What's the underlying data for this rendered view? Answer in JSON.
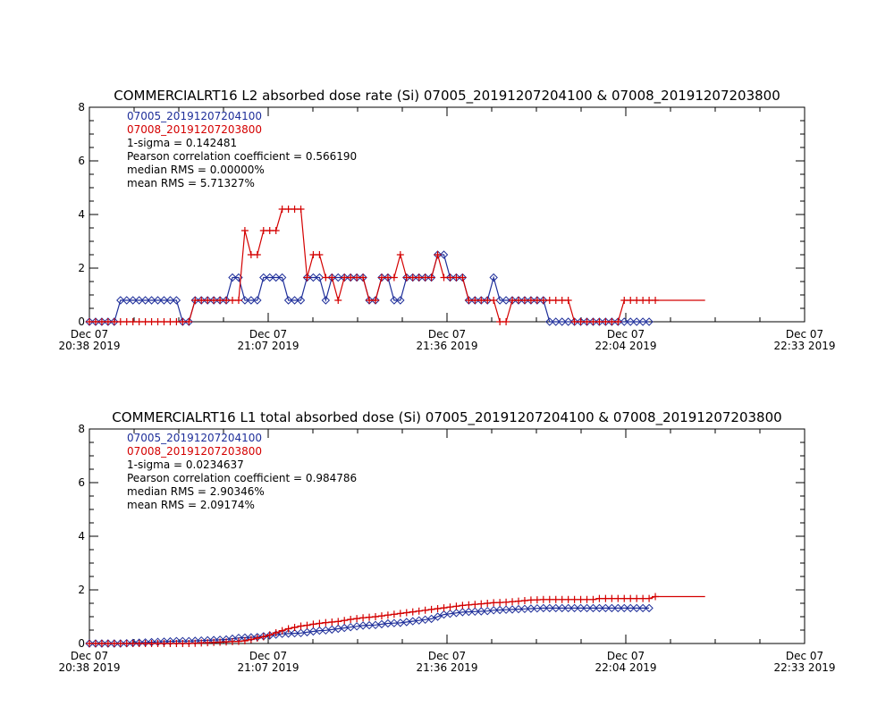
{
  "colors": {
    "blue": "#1f2f9a",
    "red": "#d40000",
    "axis": "#000000"
  },
  "chart_data": [
    {
      "type": "line",
      "title": "COMMERCIALRT16 L2 absorbed dose rate (Si) 07005_20191207204100 & 07008_20191207203800",
      "ylim": [
        0,
        8
      ],
      "yticks": [
        "0",
        "2",
        "4",
        "6",
        "8"
      ],
      "xticks": [
        {
          "day": "Dec 07",
          "time": "20:38 2019"
        },
        {
          "day": "Dec 07",
          "time": "21:07 2019"
        },
        {
          "day": "Dec 07",
          "time": "21:36 2019"
        },
        {
          "day": "Dec 07",
          "time": "22:04 2019"
        },
        {
          "day": "Dec 07",
          "time": "22:33 2019"
        }
      ],
      "xrange_min": [
        0,
        115
      ],
      "legend": [
        {
          "text": "07005_20191207204100",
          "color": "blue"
        },
        {
          "text": "07008_20191207203800",
          "color": "red"
        },
        {
          "text": "1-sigma = 0.142481",
          "color": "black"
        },
        {
          "text": "Pearson correlation coefficient = 0.566190",
          "color": "black"
        },
        {
          "text": "median RMS = 0.00000%",
          "color": "black"
        },
        {
          "text": "mean RMS = 5.71327%",
          "color": "black"
        }
      ],
      "series": [
        {
          "name": "07005_20191207204100",
          "color": "blue",
          "marker": "diamond",
          "x": [
            0,
            1,
            2,
            3,
            4,
            5,
            6,
            7,
            8,
            9,
            10,
            11,
            12,
            13,
            14,
            15,
            16,
            17,
            18,
            19,
            20,
            21,
            22,
            23,
            24,
            25,
            26,
            27,
            28,
            29,
            30,
            31,
            32,
            33,
            34,
            35,
            36,
            37,
            38,
            39,
            40,
            41,
            42,
            43,
            44,
            45,
            46,
            47,
            48,
            49,
            50,
            51,
            52,
            53,
            54,
            55,
            56,
            57,
            58,
            59,
            60,
            61,
            62,
            63,
            64,
            65,
            66,
            67,
            68,
            69,
            70,
            71,
            72,
            73,
            74,
            75,
            76,
            77,
            78,
            79,
            80,
            81,
            82,
            83,
            84,
            85,
            86,
            87,
            88,
            89,
            90
          ],
          "y": [
            0,
            0,
            0,
            0,
            0,
            0.8,
            0.8,
            0.8,
            0.8,
            0.8,
            0.8,
            0.8,
            0.8,
            0.8,
            0.8,
            0,
            0,
            0.8,
            0.8,
            0.8,
            0.8,
            0.8,
            0.8,
            1.65,
            1.65,
            0.8,
            0.8,
            0.8,
            1.65,
            1.65,
            1.65,
            1.65,
            0.8,
            0.8,
            0.8,
            1.65,
            1.65,
            1.65,
            0.8,
            1.65,
            1.65,
            1.65,
            1.65,
            1.65,
            1.65,
            0.8,
            0.8,
            1.65,
            1.65,
            0.8,
            0.8,
            1.65,
            1.65,
            1.65,
            1.65,
            1.65,
            2.5,
            2.5,
            1.65,
            1.65,
            1.65,
            0.8,
            0.8,
            0.8,
            0.8,
            1.65,
            0.8,
            0.8,
            0.8,
            0.8,
            0.8,
            0.8,
            0.8,
            0.8,
            0,
            0,
            0,
            0,
            0,
            0,
            0,
            0,
            0,
            0,
            0,
            0,
            0,
            0,
            0,
            0,
            0
          ]
        },
        {
          "name": "07008_20191207203800",
          "color": "red",
          "marker": "plus",
          "x": [
            0,
            1,
            2,
            3,
            4,
            5,
            6,
            7,
            8,
            9,
            10,
            11,
            12,
            13,
            14,
            15,
            16,
            17,
            18,
            19,
            20,
            21,
            22,
            23,
            24,
            25,
            26,
            27,
            28,
            29,
            30,
            31,
            32,
            33,
            34,
            35,
            36,
            37,
            38,
            39,
            40,
            41,
            42,
            43,
            44,
            45,
            46,
            47,
            48,
            49,
            50,
            51,
            52,
            53,
            54,
            55,
            56,
            57,
            58,
            59,
            60,
            61,
            62,
            63,
            64,
            65,
            66,
            67,
            68,
            69,
            70,
            71,
            72,
            73,
            74,
            75,
            76,
            77,
            78,
            79,
            80,
            81,
            82,
            83,
            84,
            85,
            86,
            87,
            88,
            89,
            90,
            91,
            99
          ],
          "y": [
            0,
            0,
            0,
            0,
            0,
            0,
            0,
            0,
            0,
            0,
            0,
            0,
            0,
            0,
            0,
            0,
            0,
            0.8,
            0.8,
            0.8,
            0.8,
            0.8,
            0.8,
            0.8,
            0.8,
            3.4,
            2.5,
            2.5,
            3.4,
            3.4,
            3.4,
            4.2,
            4.2,
            4.2,
            4.2,
            1.65,
            2.5,
            2.5,
            1.65,
            1.65,
            0.8,
            1.65,
            1.65,
            1.65,
            1.65,
            0.8,
            0.8,
            1.65,
            1.65,
            1.65,
            2.5,
            1.65,
            1.65,
            1.65,
            1.65,
            1.65,
            2.5,
            1.65,
            1.65,
            1.65,
            1.65,
            0.8,
            0.8,
            0.8,
            0.8,
            0.8,
            0,
            0,
            0.8,
            0.8,
            0.8,
            0.8,
            0.8,
            0.8,
            0.8,
            0.8,
            0.8,
            0.8,
            0,
            0,
            0,
            0,
            0,
            0,
            0,
            0,
            0.8,
            0.8,
            0.8,
            0.8,
            0.8,
            0.8,
            0.8
          ]
        }
      ]
    },
    {
      "type": "line",
      "title": "COMMERCIALRT16 L1 total absorbed dose (Si) 07005_20191207204100 & 07008_20191207203800",
      "ylim": [
        0,
        8
      ],
      "yticks": [
        "0",
        "2",
        "4",
        "6",
        "8"
      ],
      "xticks": [
        {
          "day": "Dec 07",
          "time": "20:38 2019"
        },
        {
          "day": "Dec 07",
          "time": "21:07 2019"
        },
        {
          "day": "Dec 07",
          "time": "21:36 2019"
        },
        {
          "day": "Dec 07",
          "time": "22:04 2019"
        },
        {
          "day": "Dec 07",
          "time": "22:33 2019"
        }
      ],
      "xrange_min": [
        0,
        115
      ],
      "legend": [
        {
          "text": "07005_20191207204100",
          "color": "blue"
        },
        {
          "text": "07008_20191207203800",
          "color": "red"
        },
        {
          "text": "1-sigma = 0.0234637",
          "color": "black"
        },
        {
          "text": "Pearson correlation coefficient = 0.984786",
          "color": "black"
        },
        {
          "text": "median RMS = 2.90346%",
          "color": "black"
        },
        {
          "text": "mean RMS = 2.09174%",
          "color": "black"
        }
      ],
      "series": [
        {
          "name": "07005_20191207204100",
          "color": "blue",
          "marker": "diamond",
          "x": [
            0,
            1,
            2,
            3,
            4,
            5,
            6,
            7,
            8,
            9,
            10,
            11,
            12,
            13,
            14,
            15,
            16,
            17,
            18,
            19,
            20,
            21,
            22,
            23,
            24,
            25,
            26,
            27,
            28,
            29,
            30,
            31,
            32,
            33,
            34,
            35,
            36,
            37,
            38,
            39,
            40,
            41,
            42,
            43,
            44,
            45,
            46,
            47,
            48,
            49,
            50,
            51,
            52,
            53,
            54,
            55,
            56,
            57,
            58,
            59,
            60,
            61,
            62,
            63,
            64,
            65,
            66,
            67,
            68,
            69,
            70,
            71,
            72,
            73,
            74,
            75,
            76,
            77,
            78,
            79,
            80,
            81,
            82,
            83,
            84,
            85,
            86,
            87,
            88,
            89,
            90
          ],
          "y": [
            0,
            0,
            0,
            0,
            0,
            0,
            0.01,
            0.02,
            0.03,
            0.04,
            0.05,
            0.06,
            0.07,
            0.08,
            0.09,
            0.09,
            0.09,
            0.1,
            0.11,
            0.12,
            0.13,
            0.14,
            0.15,
            0.18,
            0.21,
            0.22,
            0.23,
            0.24,
            0.27,
            0.3,
            0.33,
            0.36,
            0.37,
            0.38,
            0.39,
            0.42,
            0.45,
            0.48,
            0.49,
            0.52,
            0.55,
            0.58,
            0.61,
            0.64,
            0.67,
            0.68,
            0.69,
            0.72,
            0.75,
            0.76,
            0.77,
            0.8,
            0.83,
            0.86,
            0.89,
            0.92,
            1.0,
            1.08,
            1.11,
            1.14,
            1.17,
            1.18,
            1.19,
            1.2,
            1.21,
            1.24,
            1.25,
            1.26,
            1.27,
            1.28,
            1.29,
            1.3,
            1.31,
            1.32,
            1.32,
            1.32,
            1.32,
            1.32,
            1.32,
            1.32,
            1.32,
            1.32,
            1.32,
            1.32,
            1.32,
            1.32,
            1.32,
            1.32,
            1.32,
            1.32,
            1.32
          ]
        },
        {
          "name": "07008_20191207203800",
          "color": "red",
          "marker": "plus",
          "x": [
            0,
            1,
            2,
            3,
            4,
            5,
            6,
            7,
            8,
            9,
            10,
            11,
            12,
            13,
            14,
            15,
            16,
            17,
            18,
            19,
            20,
            21,
            22,
            23,
            24,
            25,
            26,
            27,
            28,
            29,
            30,
            31,
            32,
            33,
            34,
            35,
            36,
            37,
            38,
            39,
            40,
            41,
            42,
            43,
            44,
            45,
            46,
            47,
            48,
            49,
            50,
            51,
            52,
            53,
            54,
            55,
            56,
            57,
            58,
            59,
            60,
            61,
            62,
            63,
            64,
            65,
            66,
            67,
            68,
            69,
            70,
            71,
            72,
            73,
            74,
            75,
            76,
            77,
            78,
            79,
            80,
            81,
            82,
            83,
            84,
            85,
            86,
            87,
            88,
            89,
            90,
            91,
            99
          ],
          "y": [
            0,
            0,
            0,
            0,
            0,
            0,
            0,
            0,
            0,
            0,
            0,
            0,
            0,
            0,
            0,
            0,
            0,
            0.01,
            0.02,
            0.03,
            0.04,
            0.05,
            0.06,
            0.07,
            0.08,
            0.1,
            0.15,
            0.2,
            0.25,
            0.32,
            0.4,
            0.48,
            0.55,
            0.6,
            0.65,
            0.68,
            0.72,
            0.75,
            0.78,
            0.8,
            0.82,
            0.86,
            0.9,
            0.93,
            0.96,
            0.98,
            1.0,
            1.03,
            1.06,
            1.09,
            1.12,
            1.15,
            1.18,
            1.21,
            1.24,
            1.27,
            1.3,
            1.33,
            1.36,
            1.39,
            1.42,
            1.44,
            1.46,
            1.48,
            1.5,
            1.52,
            1.53,
            1.54,
            1.56,
            1.58,
            1.6,
            1.62,
            1.63,
            1.64,
            1.64,
            1.64,
            1.64,
            1.64,
            1.64,
            1.64,
            1.64,
            1.64,
            1.68,
            1.68,
            1.68,
            1.68,
            1.68,
            1.68,
            1.68,
            1.68,
            1.68,
            1.75,
            1.75
          ]
        }
      ]
    }
  ]
}
